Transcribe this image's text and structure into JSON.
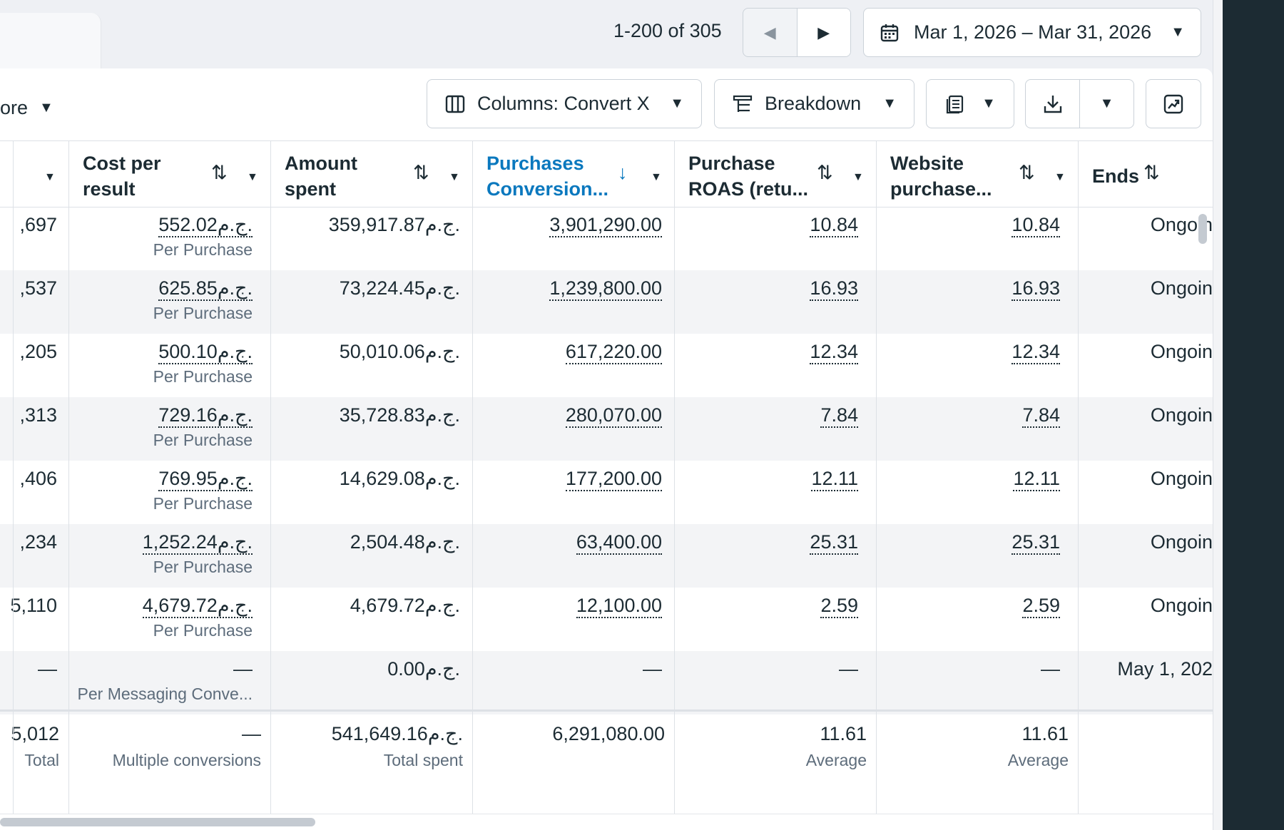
{
  "toolbar": {
    "pager": "1-200 of 305",
    "date_range": "Mar 1, 2026 – Mar 31, 2026",
    "more_label": "ore",
    "columns_label": "Columns: Convert X",
    "breakdown_label": "Breakdown"
  },
  "headers": {
    "cost_per_result": [
      "Cost per",
      "result"
    ],
    "amount_spent": [
      "Amount",
      "spent"
    ],
    "purchases_value": [
      "Purchases",
      "Conversion..."
    ],
    "purchase_roas": [
      "Purchase",
      "ROAS (retu..."
    ],
    "website_purchase": [
      "Website",
      "purchase..."
    ],
    "ends": "Ends"
  },
  "rows": [
    {
      "c0": ",697",
      "cost": "552.02ج.م.",
      "cost_sub": "Per Purchase",
      "spent": "359,917.87ج.م.",
      "value": "3,901,290.00",
      "roas": "10.84",
      "web": "10.84",
      "ends": "Ongoin"
    },
    {
      "c0": ",537",
      "cost": "625.85ج.م.",
      "cost_sub": "Per Purchase",
      "spent": "73,224.45ج.م.",
      "value": "1,239,800.00",
      "roas": "16.93",
      "web": "16.93",
      "ends": "Ongoin"
    },
    {
      "c0": ",205",
      "cost": "500.10ج.م.",
      "cost_sub": "Per Purchase",
      "spent": "50,010.06ج.م.",
      "value": "617,220.00",
      "roas": "12.34",
      "web": "12.34",
      "ends": "Ongoin"
    },
    {
      "c0": ",313",
      "cost": "729.16ج.م.",
      "cost_sub": "Per Purchase",
      "spent": "35,728.83ج.م.",
      "value": "280,070.00",
      "roas": "7.84",
      "web": "7.84",
      "ends": "Ongoin"
    },
    {
      "c0": ",406",
      "cost": "769.95ج.م.",
      "cost_sub": "Per Purchase",
      "spent": "14,629.08ج.م.",
      "value": "177,200.00",
      "roas": "12.11",
      "web": "12.11",
      "ends": "Ongoin"
    },
    {
      "c0": ",234",
      "cost": "1,252.24ج.م.",
      "cost_sub": "Per Purchase",
      "spent": "2,504.48ج.م.",
      "value": "63,400.00",
      "roas": "25.31",
      "web": "25.31",
      "ends": "Ongoin"
    },
    {
      "c0": "5,110",
      "cost": "4,679.72ج.م.",
      "cost_sub": "Per Purchase",
      "spent": "4,679.72ج.م.",
      "value": "12,100.00",
      "roas": "2.59",
      "web": "2.59",
      "ends": "Ongoin"
    },
    {
      "c0": "—",
      "cost": "—",
      "cost_sub": "Per Messaging Conve...",
      "spent": "0.00ج.م.",
      "value": "—",
      "roas": "—",
      "web": "—",
      "ends": "May 1, 202"
    }
  ],
  "totals": {
    "c0": "5,012",
    "c0_sub": "Total",
    "cost": "—",
    "cost_sub": "Multiple conversions",
    "spent": "541,649.16ج.م.",
    "spent_sub": "Total spent",
    "value": "6,291,080.00",
    "roas": "11.61",
    "roas_sub": "Average",
    "web": "11.61",
    "web_sub": "Average"
  },
  "colors": {
    "accent": "#0a78be",
    "text": "#1c2b33",
    "muted": "#5d6c7b",
    "border": "#dde1e6"
  }
}
